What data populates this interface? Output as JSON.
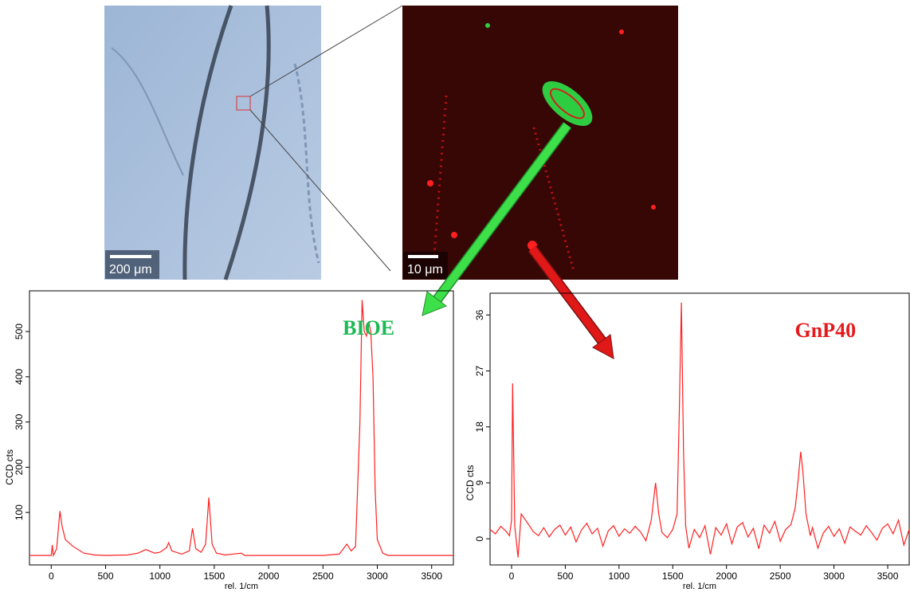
{
  "images": [
    {
      "scale_label": "200 μm"
    },
    {
      "scale_label": "10 μm"
    }
  ],
  "chart_data": [
    {
      "type": "line",
      "annotation": "BIOE",
      "annotation_color": "#1db954",
      "color": "#ff2020",
      "xlabel": "rel. 1/cm",
      "ylabel": "CCD cts",
      "xlim": [
        -200,
        3700
      ],
      "ylim": [
        -16,
        590
      ],
      "xticks": [
        0,
        500,
        1000,
        1500,
        2000,
        2500,
        3000,
        3500
      ],
      "yticks": [
        100,
        200,
        300,
        400,
        500
      ],
      "x": [
        -200,
        0,
        10,
        20,
        50,
        80,
        100,
        130,
        200,
        300,
        400,
        500,
        700,
        800,
        870,
        950,
        1000,
        1060,
        1080,
        1110,
        1200,
        1270,
        1300,
        1330,
        1380,
        1420,
        1450,
        1480,
        1520,
        1600,
        1750,
        1780,
        2000,
        2500,
        2650,
        2720,
        2760,
        2800,
        2840,
        2860,
        2880,
        2900,
        2920,
        2940,
        2960,
        2980,
        3000,
        3050,
        3100,
        3700
      ],
      "values": [
        5,
        5,
        28,
        5,
        20,
        103,
        70,
        40,
        25,
        10,
        6,
        5,
        6,
        10,
        18,
        10,
        12,
        22,
        33,
        15,
        8,
        15,
        65,
        20,
        12,
        30,
        133,
        30,
        10,
        6,
        10,
        5,
        5,
        5,
        8,
        30,
        15,
        25,
        300,
        570,
        500,
        490,
        522,
        500,
        400,
        150,
        40,
        10,
        5,
        5
      ]
    },
    {
      "type": "line",
      "annotation": "GnP40",
      "annotation_color": "#e41a1c",
      "color": "#ff2020",
      "xlabel": "rel. 1/cm",
      "ylabel": "CCD cts",
      "xlim": [
        -200,
        3700
      ],
      "ylim": [
        -4.2,
        39.5
      ],
      "xticks": [
        0,
        500,
        1000,
        1500,
        2000,
        2500,
        3000,
        3500
      ],
      "yticks": [
        0,
        9,
        18,
        27,
        36
      ],
      "x": [
        -200,
        -150,
        -100,
        -50,
        -20,
        0,
        10,
        30,
        60,
        90,
        130,
        170,
        200,
        250,
        300,
        350,
        400,
        450,
        500,
        550,
        600,
        650,
        700,
        750,
        800,
        850,
        900,
        950,
        1000,
        1050,
        1100,
        1150,
        1200,
        1250,
        1300,
        1340,
        1370,
        1400,
        1450,
        1500,
        1540,
        1560,
        1580,
        1600,
        1620,
        1650,
        1700,
        1750,
        1800,
        1850,
        1900,
        1950,
        2000,
        2050,
        2100,
        2150,
        2200,
        2250,
        2300,
        2350,
        2400,
        2450,
        2500,
        2550,
        2600,
        2640,
        2670,
        2690,
        2710,
        2740,
        2780,
        2800,
        2850,
        2900,
        2950,
        3000,
        3050,
        3100,
        3150,
        3200,
        3250,
        3300,
        3350,
        3400,
        3450,
        3500,
        3550,
        3600,
        3650,
        3700
      ],
      "values": [
        1.5,
        0.8,
        2.0,
        1.2,
        0.5,
        3,
        25,
        2,
        -3,
        4,
        3,
        2,
        1.2,
        0.5,
        1.8,
        0.3,
        1.5,
        2.2,
        0.6,
        1.9,
        -0.5,
        1.4,
        2.5,
        0.8,
        1.7,
        -1.2,
        1.3,
        2.1,
        0.4,
        1.6,
        0.9,
        2.0,
        1.1,
        -0.3,
        3,
        9,
        4,
        1,
        0.2,
        1.5,
        4,
        20,
        38,
        14,
        2,
        -1.5,
        1.5,
        0.2,
        2.1,
        -2.5,
        1.8,
        0.6,
        2.4,
        -0.8,
        1.9,
        2.6,
        0.3,
        1.7,
        -1.6,
        2.2,
        0.9,
        2.8,
        -0.4,
        1.5,
        2.3,
        5,
        10,
        14,
        11,
        4,
        0.5,
        1.8,
        -1.5,
        0.9,
        2.0,
        0.4,
        1.6,
        -0.7,
        1.9,
        1.2,
        0.6,
        2.1,
        1.0,
        -0.2,
        1.7,
        2.4,
        0.8,
        3.0,
        -1.0,
        1.5
      ]
    }
  ]
}
